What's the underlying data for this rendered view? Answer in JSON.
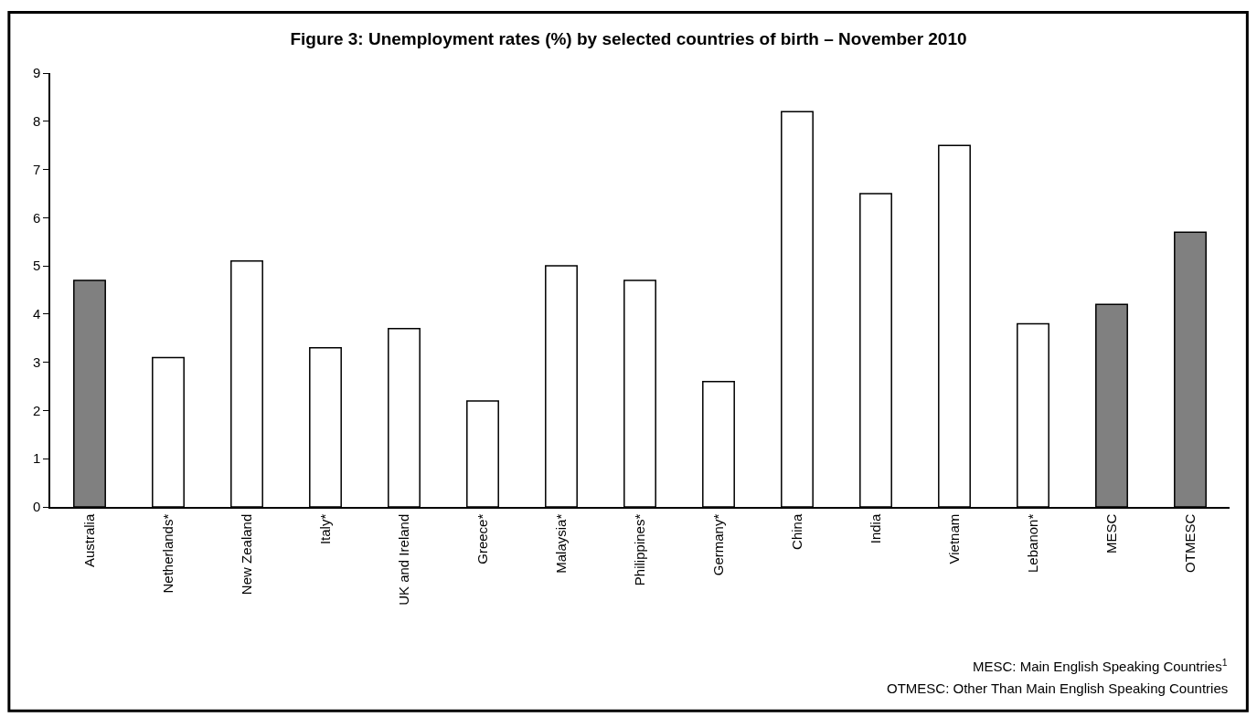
{
  "chart_data": {
    "type": "bar",
    "title": "Figure 3: Unemployment rates (%) by selected countries of birth – November 2010",
    "categories": [
      "Australia",
      "Netherlands*",
      "New Zealand",
      "Italy*",
      "UK and Ireland",
      "Greece*",
      "Malaysia*",
      "Philippines*",
      "Germany*",
      "China",
      "India",
      "Vietnam",
      "Lebanon*",
      "MESC",
      "OTMESC"
    ],
    "values": [
      4.7,
      3.1,
      5.1,
      3.3,
      3.7,
      2.2,
      5.0,
      4.7,
      2.6,
      8.2,
      6.5,
      7.5,
      3.8,
      4.2,
      5.7
    ],
    "colors": [
      "#808080",
      "#ffffff",
      "#ffffff",
      "#ffffff",
      "#ffffff",
      "#ffffff",
      "#ffffff",
      "#ffffff",
      "#ffffff",
      "#ffffff",
      "#ffffff",
      "#ffffff",
      "#ffffff",
      "#808080",
      "#808080"
    ],
    "ylim": [
      0,
      9
    ],
    "yticks": [
      0,
      1,
      2,
      3,
      4,
      5,
      6,
      7,
      8,
      9
    ],
    "annotations": [
      "MESC: Main English Speaking Countries$^{1}$",
      "OTMESC: Other Than Main English Speaking Countries"
    ]
  }
}
